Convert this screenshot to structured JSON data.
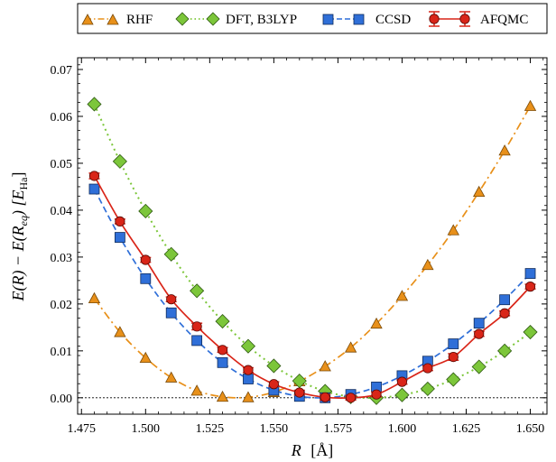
{
  "chart_data": {
    "type": "line",
    "xlabel": "R [Å]",
    "ylabel": "E(R) − E(R_eq) [E_Ha]",
    "ylabel_parts": {
      "main": "E(R) − E(R",
      "sub_eq": "eq",
      "mid": ") [E",
      "sub_ha": "Ha",
      "end": "]"
    },
    "xlabel_parts": {
      "main": "R",
      "bracket": "[Å]"
    },
    "xlim": [
      1.4735,
      1.6565
    ],
    "ylim": [
      -0.0035,
      0.0725
    ],
    "x_ticks": [
      1.475,
      1.5,
      1.525,
      1.55,
      1.575,
      1.6,
      1.625,
      1.65
    ],
    "x_tick_labels": [
      "1.475",
      "1.500",
      "1.525",
      "1.550",
      "1.575",
      "1.600",
      "1.625",
      "1.650"
    ],
    "y_ticks": [
      0,
      0.01,
      0.02,
      0.03,
      0.04,
      0.05,
      0.06,
      0.07
    ],
    "y_tick_labels": [
      "0.00",
      "0.01",
      "0.02",
      "0.03",
      "0.04",
      "0.05",
      "0.06",
      "0.07"
    ],
    "grid": false,
    "reference_line_y": 0,
    "legend_position": "top, above plot",
    "series": [
      {
        "name": "RHF",
        "marker": "triangle",
        "line": "dashdot",
        "color": "#e8901a",
        "edge": "#7a4a08",
        "x": [
          1.48,
          1.49,
          1.5,
          1.51,
          1.52,
          1.53,
          1.54,
          1.55,
          1.56,
          1.57,
          1.58,
          1.59,
          1.6,
          1.61,
          1.62,
          1.63,
          1.64,
          1.65
        ],
        "y": [
          0.0212,
          0.014,
          0.0085,
          0.0043,
          0.0015,
          0.0002,
          0.0001,
          0.0012,
          0.0035,
          0.0067,
          0.0107,
          0.0158,
          0.0217,
          0.0283,
          0.0357,
          0.0439,
          0.0527,
          0.0622
        ]
      },
      {
        "name": "DFT, B3LYP",
        "marker": "diamond",
        "line": "dotted",
        "color": "#7cc63a",
        "edge": "#2f5a12",
        "x": [
          1.48,
          1.49,
          1.5,
          1.51,
          1.52,
          1.53,
          1.54,
          1.55,
          1.56,
          1.57,
          1.58,
          1.59,
          1.6,
          1.61,
          1.62,
          1.63,
          1.64,
          1.65
        ],
        "y": [
          0.0626,
          0.0504,
          0.0398,
          0.0306,
          0.0228,
          0.0163,
          0.011,
          0.0068,
          0.0036,
          0.0014,
          0.0002,
          0.0,
          0.0006,
          0.0019,
          0.0039,
          0.0066,
          0.01,
          0.014
        ]
      },
      {
        "name": "CCSD",
        "marker": "square",
        "line": "dashed",
        "color": "#2f6fd8",
        "edge": "#102c5c",
        "x": [
          1.48,
          1.49,
          1.5,
          1.51,
          1.52,
          1.53,
          1.54,
          1.55,
          1.56,
          1.57,
          1.58,
          1.59,
          1.6,
          1.61,
          1.62,
          1.63,
          1.64,
          1.65
        ],
        "y": [
          0.0445,
          0.0342,
          0.0254,
          0.0181,
          0.0122,
          0.0075,
          0.004,
          0.0016,
          0.0003,
          0.0,
          0.0007,
          0.0023,
          0.0047,
          0.0078,
          0.0115,
          0.0159,
          0.0209,
          0.0265
        ]
      },
      {
        "name": "AFQMC",
        "marker": "circle",
        "line": "solid",
        "color": "#d92518",
        "edge": "#5a0a05",
        "errorbars": true,
        "x": [
          1.48,
          1.49,
          1.5,
          1.51,
          1.52,
          1.53,
          1.54,
          1.55,
          1.56,
          1.57,
          1.58,
          1.59,
          1.6,
          1.61,
          1.62,
          1.63,
          1.64,
          1.65
        ],
        "y": [
          0.0473,
          0.0376,
          0.0294,
          0.021,
          0.0152,
          0.0102,
          0.0059,
          0.0029,
          0.0011,
          0.0001,
          0.0,
          0.0007,
          0.0034,
          0.0063,
          0.0087,
          0.0136,
          0.018,
          0.0237
        ],
        "err": [
          0.0006,
          0.0005,
          0.0005,
          0.0005,
          0.0007,
          0.0005,
          0.0005,
          0.0005,
          0.0005,
          0.0006,
          0.0005,
          0.0005,
          0.0005,
          0.0005,
          0.0007,
          0.0005,
          0.0005,
          0.0005
        ]
      }
    ]
  }
}
